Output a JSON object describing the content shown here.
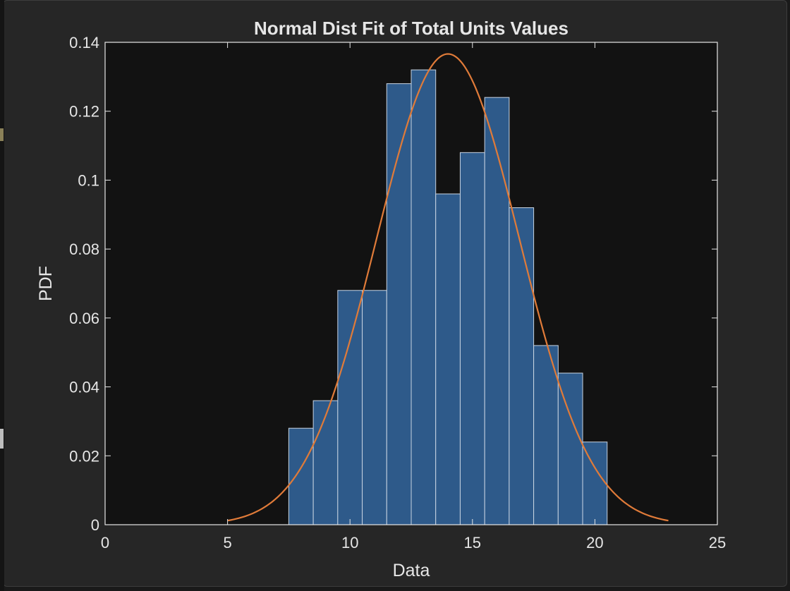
{
  "chart_data": {
    "type": "bar",
    "title": "Normal Dist Fit of Total Units Values",
    "xlabel": "Data",
    "ylabel": "PDF",
    "xlim": [
      0,
      25
    ],
    "ylim": [
      0,
      0.14
    ],
    "x_ticks": [
      0,
      5,
      10,
      15,
      20,
      25
    ],
    "y_ticks": [
      0,
      0.02,
      0.04,
      0.06,
      0.08,
      0.1,
      0.12,
      0.14
    ],
    "y_tick_labels": [
      "0",
      "0.02",
      "0.04",
      "0.06",
      "0.08",
      "0.1",
      "0.12",
      "0.14"
    ],
    "grid": false,
    "histogram": {
      "bin_edges": [
        7.5,
        8.5,
        9.5,
        10.5,
        11.5,
        12.5,
        13.5,
        14.5,
        15.5,
        16.5,
        17.5,
        18.5,
        19.5,
        20.5
      ],
      "values": [
        0.028,
        0.036,
        0.068,
        0.068,
        0.128,
        0.132,
        0.096,
        0.108,
        0.124,
        0.092,
        0.052,
        0.044,
        0.024
      ]
    },
    "fit_curve": {
      "type": "normal-pdf",
      "mu": 14.0,
      "sigma": 2.92,
      "x_range": [
        5,
        23
      ]
    },
    "colors": {
      "bar_fill": "#2e5a8a",
      "bar_edge": "#c8d4e2",
      "fit_line": "#e07b39",
      "plot_background": "#121212",
      "figure_background": "#262626",
      "axis_color": "#e6e6e6"
    }
  }
}
